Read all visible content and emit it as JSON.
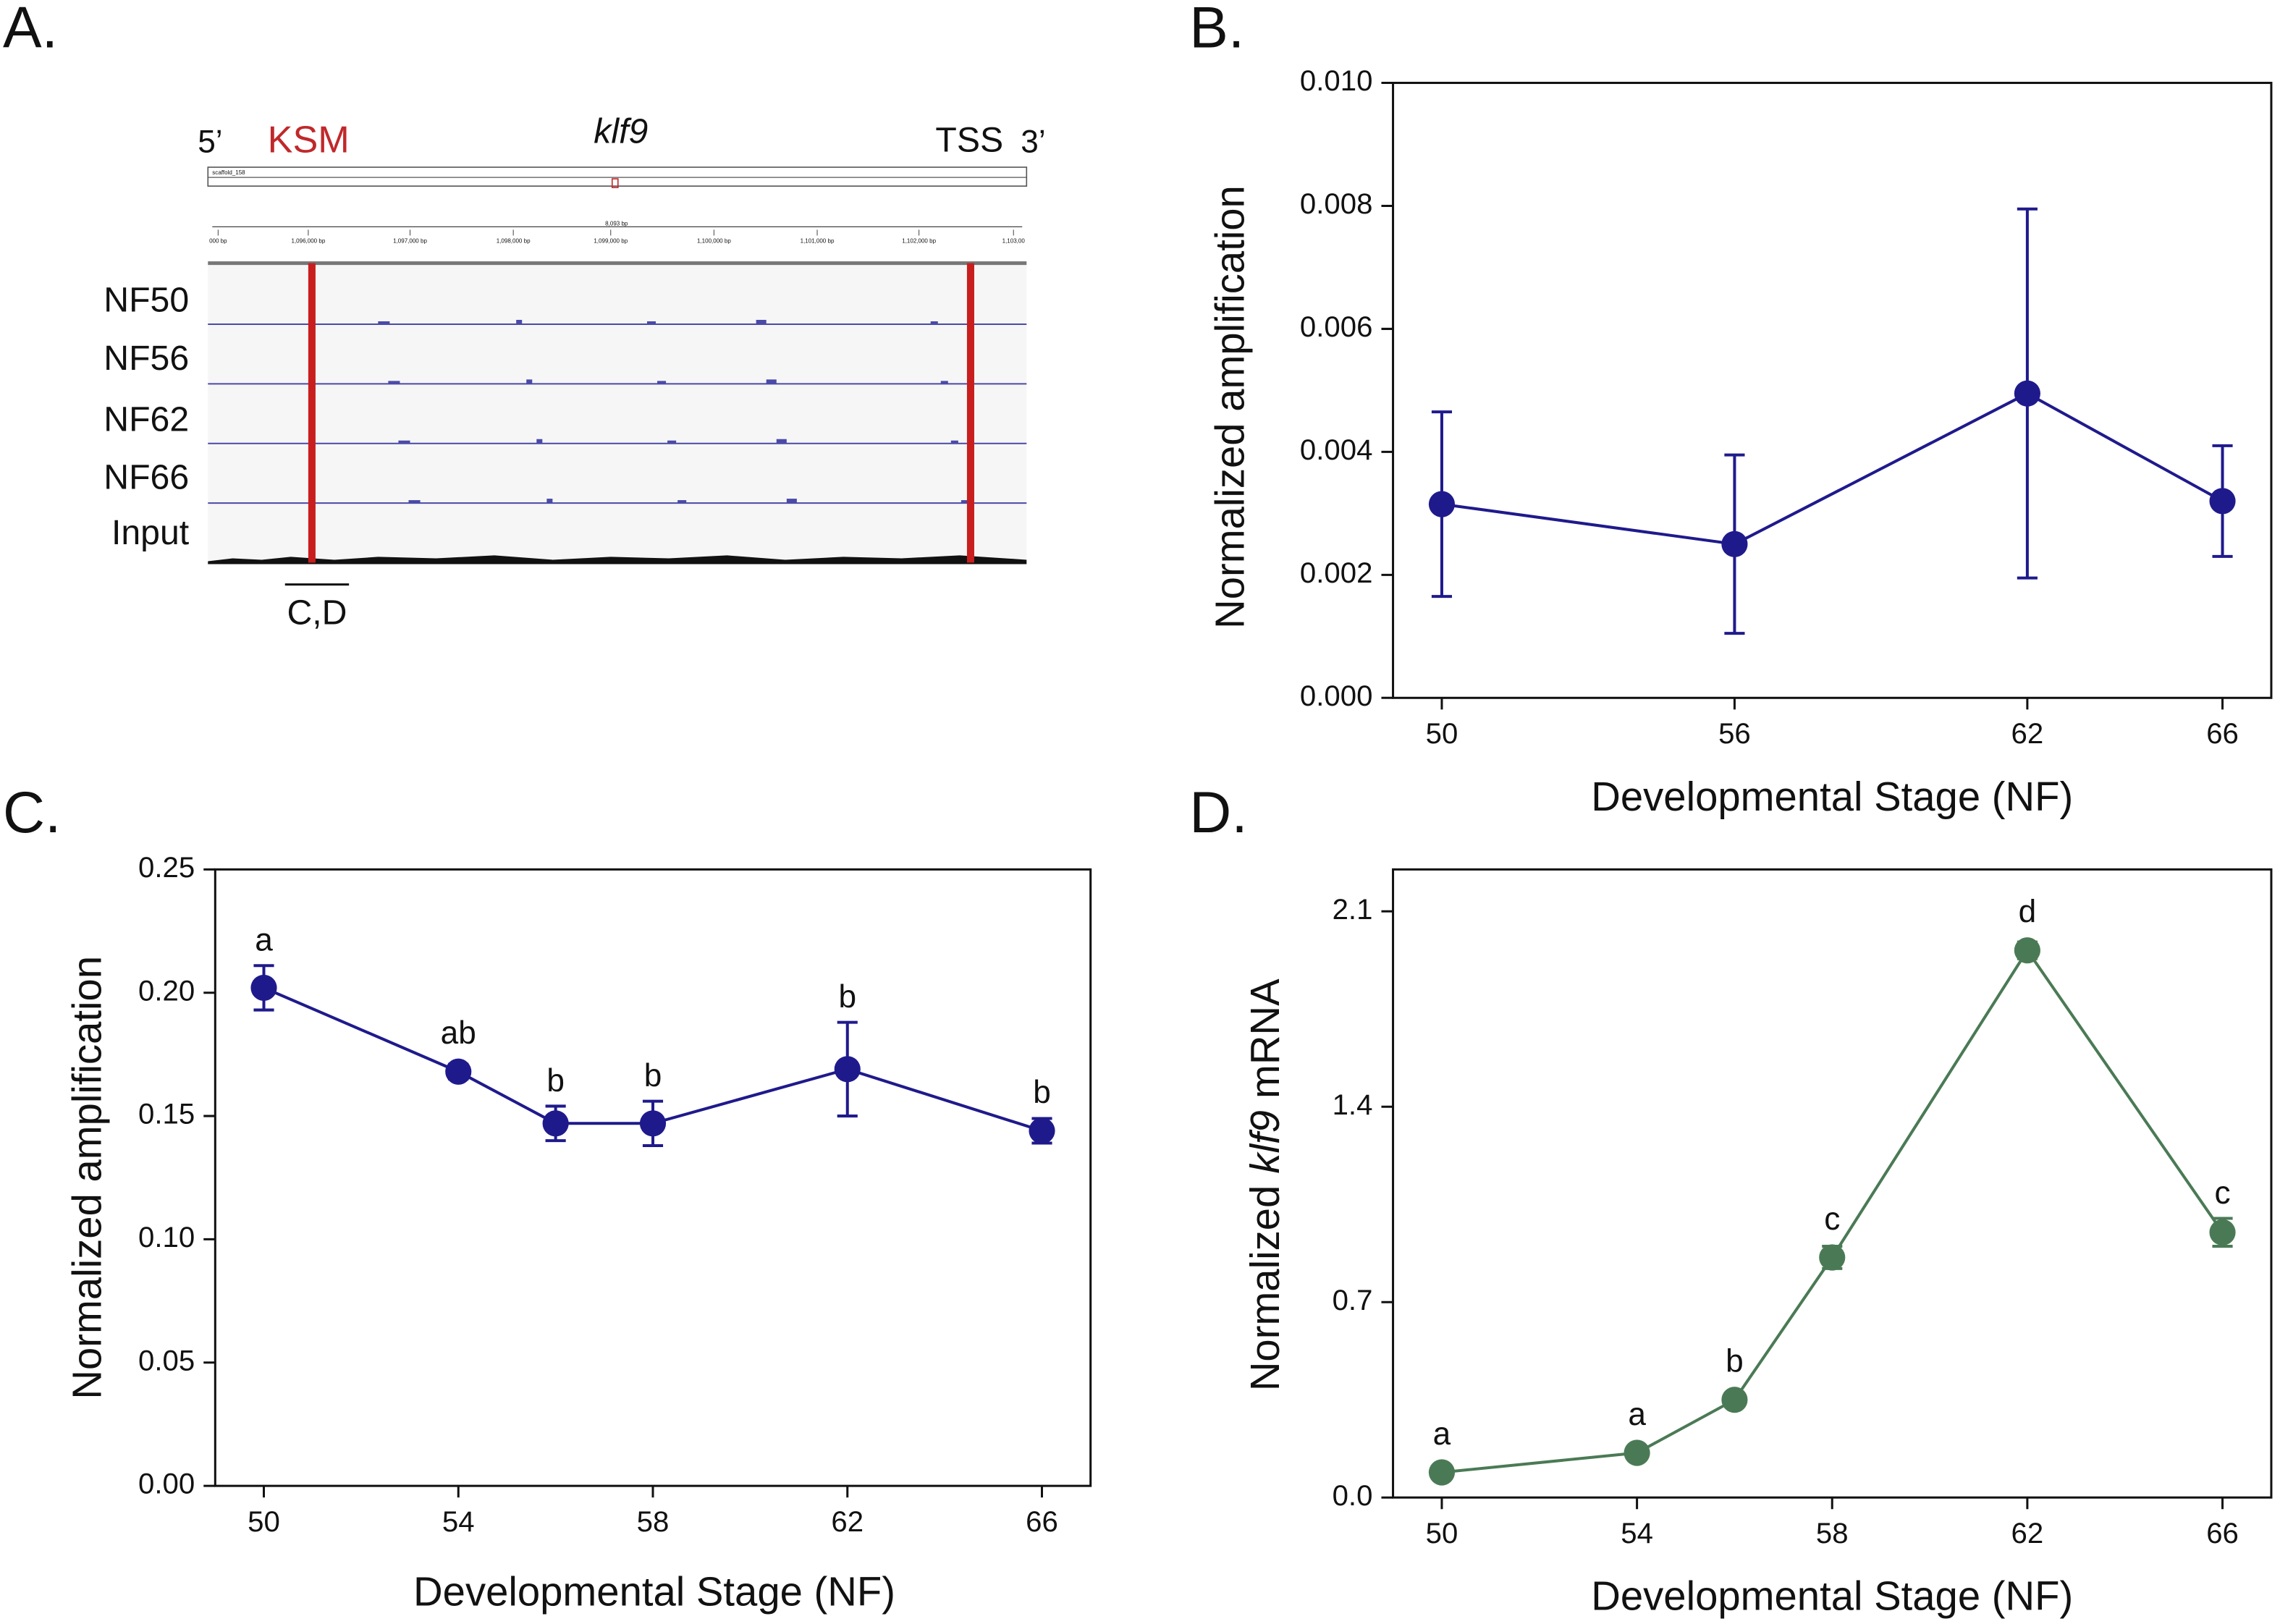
{
  "genome_view": {
    "panel": "A.",
    "five_prime": "5’",
    "ksm": "KSM",
    "gene": "klf9",
    "tss": "TSS",
    "three_prime": "3’",
    "scaffold": "scaffold_158",
    "span": "8,093 bp",
    "coords": [
      "000 bp",
      "1,096,000 bp",
      "1,097,000 bp",
      "1,098,000 bp",
      "1,099,000 bp",
      "1,100,000 bp",
      "1,101,000 bp",
      "1,102,000 bp",
      "1,103,00"
    ],
    "tracks": [
      "NF50",
      "NF56",
      "NF62",
      "NF66",
      "Input"
    ],
    "amplicon": "C,D"
  },
  "chart_data": [
    {
      "type": "line",
      "panel": "B.",
      "xlabel": "Developmental Stage (NF)",
      "ylabel": "Normalized amplification",
      "x": [
        50,
        56,
        62,
        66
      ],
      "values": [
        0.00315,
        0.0025,
        0.00495,
        0.0032
      ],
      "errors": [
        0.0015,
        0.00145,
        0.003,
        0.0009
      ],
      "color": "#1f1a8c",
      "xlim": [
        49,
        67
      ],
      "xticks": [
        50,
        56,
        62,
        66
      ],
      "ylim": [
        0,
        0.01
      ],
      "yticks": [
        {
          "value": 0,
          "label": "0.000"
        },
        0.002,
        0.004,
        0.006,
        0.008,
        {
          "value": 0.01,
          "label": "0.010"
        }
      ]
    },
    {
      "type": "line",
      "panel": "C.",
      "xlabel": "Developmental Stage (NF)",
      "ylabel": "Normalized amplification",
      "x": [
        50,
        54,
        56,
        58,
        62,
        66
      ],
      "values": [
        0.202,
        0.168,
        0.147,
        0.147,
        0.169,
        0.144
      ],
      "errors": [
        0.009,
        0.003,
        0.007,
        0.009,
        0.019,
        0.005
      ],
      "annotations": [
        "a",
        "ab",
        "b",
        "b",
        "b",
        "b"
      ],
      "color": "#1f1a8c",
      "xlim": [
        49,
        67
      ],
      "xticks": [
        50,
        54,
        58,
        62,
        66
      ],
      "ylim": [
        0,
        0.25
      ],
      "yticks": [
        {
          "value": 0,
          "label": "0.00"
        },
        0.05,
        {
          "value": 0.1,
          "label": "0.10"
        },
        0.15,
        {
          "value": 0.2,
          "label": "0.20"
        },
        0.25
      ]
    },
    {
      "type": "line",
      "panel": "D.",
      "xlabel": "Developmental Stage (NF)",
      "ylabel_parts": [
        "Normalized",
        "klf9",
        "mRNA"
      ],
      "ylabel_italic_part": 1,
      "x": [
        50,
        54,
        56,
        58,
        62,
        66
      ],
      "values": [
        0.09,
        0.16,
        0.35,
        0.86,
        1.96,
        0.95
      ],
      "errors": [
        0.02,
        0.02,
        0.02,
        0.04,
        0.03,
        0.05
      ],
      "annotations": [
        "a",
        "a",
        "b",
        "c",
        "d",
        "c"
      ],
      "color": "#4a7a55",
      "xlim": [
        49,
        67
      ],
      "xticks": [
        50,
        54,
        58,
        62,
        66
      ],
      "ylim": [
        0,
        2.25
      ],
      "yticks": [
        {
          "value": 0,
          "label": "0.0"
        },
        0.7,
        1.4,
        2.1
      ]
    }
  ]
}
